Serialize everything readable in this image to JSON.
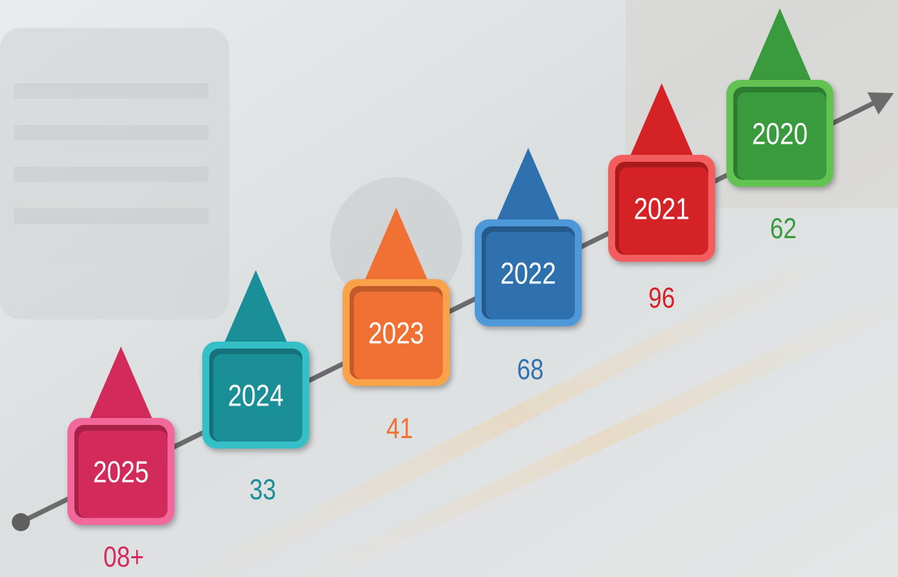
{
  "timeline": {
    "items": [
      {
        "year": "2025",
        "value": "08+",
        "color": "#d22a5a",
        "rim": "#f2679a"
      },
      {
        "year": "2024",
        "value": "33",
        "color": "#1a8f98",
        "rim": "#34c0c8"
      },
      {
        "year": "2023",
        "value": "41",
        "color": "#f07133",
        "rim": "#f9a24a"
      },
      {
        "year": "2022",
        "value": "68",
        "color": "#2f70ae",
        "rim": "#4e98d8"
      },
      {
        "year": "2021",
        "value": "96",
        "color": "#d42226",
        "rim": "#f45d5d"
      },
      {
        "year": "2020",
        "value": "62",
        "color": "#3a9a3e",
        "rim": "#62c352"
      }
    ]
  }
}
